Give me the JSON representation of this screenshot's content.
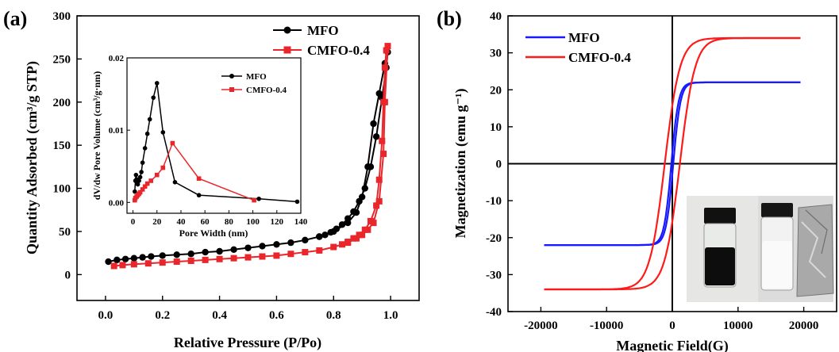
{
  "chart_data": [
    {
      "type": "line",
      "panel_label": "(a)",
      "xlabel": "Relative Pressure (P/Po)",
      "ylabel": "Quantity Adsorbed (cm³/g STP)",
      "xlim": [
        -0.1,
        1.1
      ],
      "ylim": [
        -30,
        300
      ],
      "xticks": [
        "0.0",
        "0.2",
        "0.4",
        "0.6",
        "0.8",
        "1.0"
      ],
      "yticks": [
        "0",
        "50",
        "100",
        "150",
        "200",
        "250",
        "300"
      ],
      "legend_position": "top-right",
      "series": [
        {
          "name": "MFO",
          "color": "#000000",
          "marker": "circle",
          "x": [
            0.01,
            0.04,
            0.07,
            0.1,
            0.13,
            0.16,
            0.2,
            0.25,
            0.3,
            0.35,
            0.4,
            0.45,
            0.5,
            0.55,
            0.6,
            0.65,
            0.7,
            0.75,
            0.8,
            0.85,
            0.88,
            0.9,
            0.92,
            0.94,
            0.96,
            0.98,
            0.99,
            0.985,
            0.97,
            0.95,
            0.93,
            0.91,
            0.89,
            0.87,
            0.85,
            0.83,
            0.81,
            0.79,
            0.77,
            0.75
          ],
          "y": [
            15,
            17,
            18,
            19,
            20,
            21,
            22,
            23,
            24,
            26,
            27,
            29,
            31,
            33,
            35,
            37,
            40,
            44,
            50,
            60,
            72,
            90,
            125,
            175,
            210,
            245,
            258,
            240,
            205,
            160,
            125,
            100,
            85,
            73,
            65,
            58,
            53,
            49,
            46,
            44
          ]
        },
        {
          "name": "CMFO-0.4",
          "color": "#e8262b",
          "marker": "square",
          "x": [
            0.03,
            0.06,
            0.1,
            0.15,
            0.2,
            0.25,
            0.3,
            0.35,
            0.4,
            0.45,
            0.5,
            0.55,
            0.6,
            0.65,
            0.7,
            0.75,
            0.8,
            0.85,
            0.88,
            0.9,
            0.92,
            0.94,
            0.96,
            0.975,
            0.98,
            0.99,
            0.985,
            0.98,
            0.975,
            0.97,
            0.96,
            0.95,
            0.93,
            0.91,
            0.89,
            0.87,
            0.85,
            0.83
          ],
          "y": [
            10,
            11,
            12,
            13,
            14,
            15,
            16,
            17,
            18,
            19,
            20,
            21,
            22,
            24,
            26,
            28,
            32,
            37,
            42,
            46,
            52,
            60,
            85,
            140,
            200,
            265,
            260,
            240,
            200,
            155,
            110,
            80,
            62,
            52,
            46,
            42,
            38,
            35
          ]
        }
      ],
      "inset": {
        "xlabel": "Pore Width (nm)",
        "ylabel": "dV/dw Pore Volume (cm³/g·nm)",
        "xlim": [
          -5,
          140
        ],
        "ylim": [
          -0.0015,
          0.02
        ],
        "xticks": [
          "0",
          "20",
          "40",
          "60",
          "80",
          "100",
          "120",
          "140"
        ],
        "yticks": [
          "0.00",
          "0.01",
          "0.02"
        ],
        "legend_position": "top-right",
        "series": [
          {
            "name": "MFO",
            "color": "#000000",
            "marker": "circle",
            "x": [
              1.5,
              2,
              2.5,
              3,
              3.5,
              4,
              5,
              6,
              7,
              8,
              10,
              12,
              14,
              17,
              20,
              25,
              35,
              55,
              105,
              137
            ],
            "y": [
              0.0015,
              0.003,
              0.0038,
              0.0032,
              0.0028,
              0.0025,
              0.003,
              0.0035,
              0.0042,
              0.0055,
              0.0075,
              0.0095,
              0.0115,
              0.0145,
              0.0165,
              0.0097,
              0.0028,
              0.001,
              0.0005,
              0.0001
            ]
          },
          {
            "name": "CMFO-0.4",
            "color": "#e8262b",
            "marker": "square",
            "x": [
              1.5,
              2,
              3,
              4,
              5,
              6,
              8,
              10,
              12,
              15,
              20,
              25,
              33,
              55,
              101
            ],
            "y": [
              0.0003,
              0.0006,
              0.0008,
              0.001,
              0.0012,
              0.0014,
              0.0018,
              0.0022,
              0.0026,
              0.003,
              0.0038,
              0.0048,
              0.0082,
              0.0033,
              0.0003
            ]
          }
        ]
      }
    },
    {
      "type": "line",
      "panel_label": "(b)",
      "xlabel": "Magnetic Field(G)",
      "ylabel": "Magnetization (emu g⁻¹)",
      "xlim": [
        -25000,
        25000
      ],
      "ylim": [
        -40,
        40
      ],
      "xticks": [
        "-20000",
        "-10000",
        "0",
        "10000",
        "20000"
      ],
      "yticks": [
        "-40",
        "-30",
        "-20",
        "-10",
        "0",
        "10",
        "20",
        "30",
        "40"
      ],
      "legend_position": "top-left",
      "series": [
        {
          "name": "MFO",
          "color": "#1a1aff",
          "Ms": 22,
          "Hc": 150,
          "H0": 1100
        },
        {
          "name": "CMFO-0.4",
          "color": "#ff1a1a",
          "Ms": 34,
          "Hc": 1150,
          "H0": 2300
        }
      ],
      "inset_photo": "photo of vials: dark suspension vial, white powder vial, foil packet"
    }
  ]
}
